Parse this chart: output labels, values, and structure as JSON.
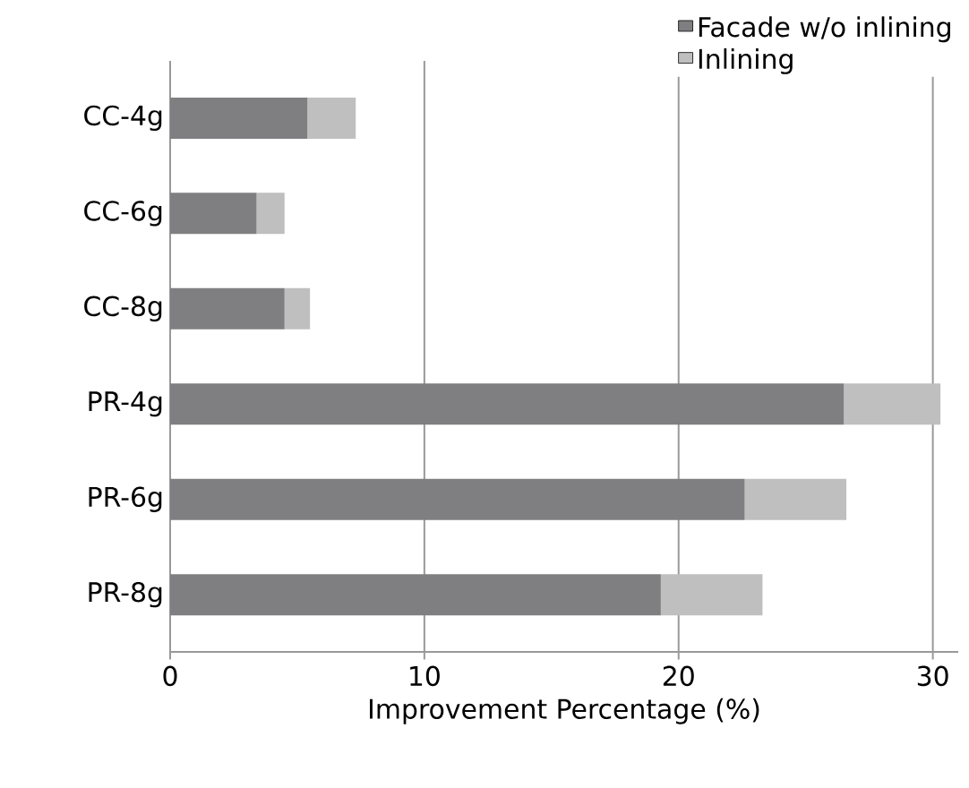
{
  "chart_data": {
    "type": "bar",
    "orientation": "horizontal",
    "stacked": true,
    "xlabel": "Improvement Percentage (%)",
    "categories": [
      "CC-4g",
      "CC-6g",
      "CC-8g",
      "PR-4g",
      "PR-6g",
      "PR-8g"
    ],
    "series": [
      {
        "name": "Facade w/o inlining",
        "color": "#7f7f82",
        "values": [
          5.4,
          3.4,
          4.5,
          26.5,
          22.6,
          19.3
        ]
      },
      {
        "name": "Inlining",
        "color": "#bfbfbf",
        "values": [
          1.9,
          1.1,
          1.0,
          3.8,
          4.0,
          4.0
        ]
      }
    ],
    "xlim": [
      0,
      31
    ],
    "xticks": [
      0,
      10,
      20,
      30
    ],
    "grid": "x",
    "legend": "top right"
  }
}
